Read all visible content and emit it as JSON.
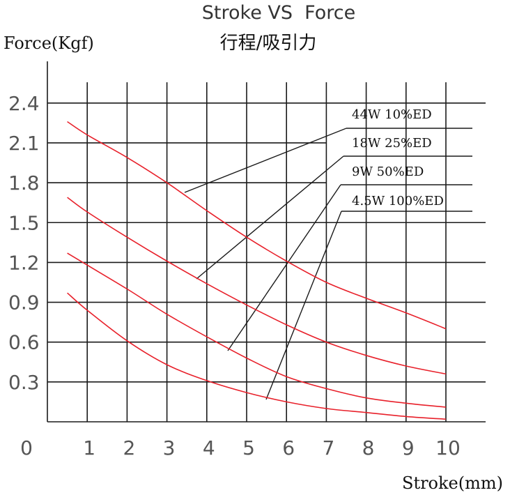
{
  "chart_data": {
    "type": "line",
    "title": "Stroke VS  Force",
    "subtitle": "行程/吸引力",
    "ylabel": "Force(Kgf)",
    "xlabel": "Stroke(mm)",
    "xlim": [
      0,
      10
    ],
    "ylim": [
      0,
      2.4
    ],
    "grid": true,
    "x_ticks": [
      "0",
      "1",
      "2",
      "3",
      "4",
      "5",
      "6",
      "7",
      "8",
      "9",
      "10"
    ],
    "y_ticks": [
      "0.3",
      "0.6",
      "0.9",
      "1.2",
      "1.5",
      "1.8",
      "2.1",
      "2.4"
    ],
    "line_color": "#e8202a",
    "series": [
      {
        "name": "44W  10%ED",
        "x": [
          0.5,
          1,
          2,
          3,
          4,
          5,
          6,
          7,
          8,
          9,
          10
        ],
        "values": [
          2.26,
          2.16,
          1.99,
          1.8,
          1.59,
          1.39,
          1.21,
          1.05,
          0.93,
          0.82,
          0.7
        ]
      },
      {
        "name": "18W  25%ED",
        "x": [
          0.5,
          1,
          2,
          3,
          4,
          5,
          6,
          7,
          8,
          9,
          10
        ],
        "values": [
          1.69,
          1.58,
          1.39,
          1.21,
          1.04,
          0.88,
          0.73,
          0.6,
          0.5,
          0.42,
          0.36
        ]
      },
      {
        "name": "9W   50%ED",
        "x": [
          0.5,
          1,
          2,
          3,
          4,
          5,
          6,
          7,
          8,
          9,
          10
        ],
        "values": [
          1.27,
          1.18,
          1.0,
          0.81,
          0.64,
          0.48,
          0.34,
          0.25,
          0.18,
          0.14,
          0.11
        ]
      },
      {
        "name": "4.5W  100%ED",
        "x": [
          0.5,
          1,
          2,
          3,
          4,
          5,
          6,
          7,
          8,
          9,
          10
        ],
        "values": [
          0.97,
          0.84,
          0.61,
          0.43,
          0.31,
          0.22,
          0.15,
          0.1,
          0.07,
          0.04,
          0.02
        ]
      }
    ]
  }
}
